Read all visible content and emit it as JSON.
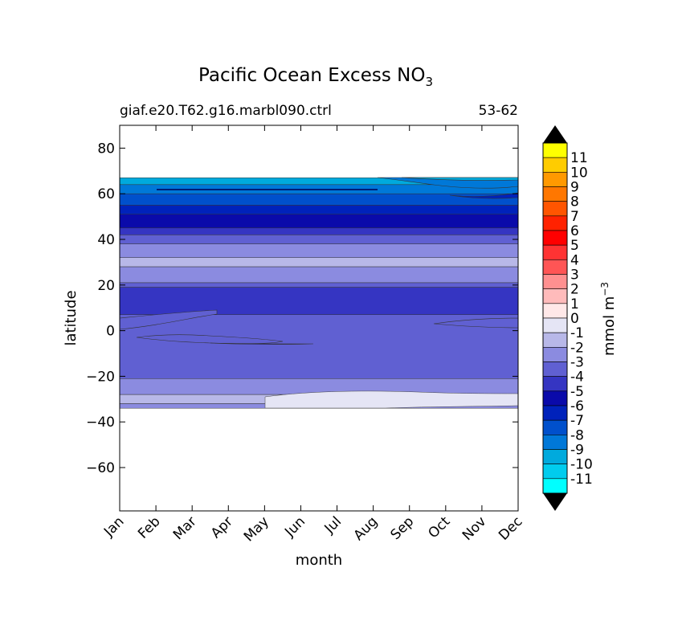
{
  "chart_data": {
    "type": "contour",
    "title": "Pacific Ocean Excess NO",
    "title_subscript": "3",
    "subtitle_left": "giaf.e20.T62.g16.marbl090.ctrl",
    "subtitle_right": "53-62",
    "xlabel": "month",
    "ylabel": "latitude",
    "x_categories": [
      "Jan",
      "Feb",
      "Mar",
      "Apr",
      "May",
      "Jun",
      "Jul",
      "Aug",
      "Sep",
      "Oct",
      "Nov",
      "Dec"
    ],
    "y_ticks": [
      80,
      60,
      40,
      20,
      0,
      -20,
      -40,
      -60
    ],
    "y_tick_labels": [
      "80",
      "60",
      "40",
      "20",
      "0",
      "−20",
      "−40",
      "−60"
    ],
    "ylim": [
      -79,
      90
    ],
    "data_extent_lat": [
      -34,
      67
    ],
    "colorbar": {
      "label": "mmol m",
      "label_superscript": "−3",
      "extend": "both",
      "levels": [
        11,
        10,
        9,
        8,
        7,
        6,
        5,
        4,
        3,
        2,
        1,
        0,
        -1,
        -2,
        -3,
        -4,
        -5,
        -6,
        -7,
        -8,
        -9,
        -10,
        -11
      ],
      "level_labels": [
        "11",
        "10",
        "9",
        "8",
        "7",
        "6",
        "5",
        "4",
        "3",
        "2",
        "1",
        "0",
        "-1",
        "-2",
        "-3",
        "-4",
        "-5",
        "-6",
        "-7",
        "-8",
        "-9",
        "-10",
        "-11"
      ],
      "colors": [
        "#ffff00",
        "#ffcc00",
        "#ff9900",
        "#ff7700",
        "#ff5500",
        "#ff2200",
        "#ff0000",
        "#ff3333",
        "#ff5555",
        "#ff9090",
        "#ffbbbb",
        "#ffe8e8",
        "#e5e5f5",
        "#b8b8e8",
        "#8b8be0",
        "#6060d2",
        "#3535c2",
        "#0a0aaa",
        "#0022bb",
        "#0050cc",
        "#0078d8",
        "#00aadd",
        "#00ccee",
        "#00ffff"
      ],
      "over_color": "#000000",
      "under_color": "#000000"
    },
    "bands": [
      {
        "lat_bottom": 64,
        "lat_top": 67,
        "value": -9
      },
      {
        "lat_bottom": 60,
        "lat_top": 64,
        "value": -8
      },
      {
        "lat_bottom": 55,
        "lat_top": 60,
        "value": -7
      },
      {
        "lat_bottom": 51,
        "lat_top": 55,
        "value": -6
      },
      {
        "lat_bottom": 45,
        "lat_top": 51,
        "value": -5
      },
      {
        "lat_bottom": 42,
        "lat_top": 45,
        "value": -4
      },
      {
        "lat_bottom": 38,
        "lat_top": 42,
        "value": -3
      },
      {
        "lat_bottom": 32,
        "lat_top": 38,
        "value": -2
      },
      {
        "lat_bottom": 28,
        "lat_top": 32,
        "value": -1
      },
      {
        "lat_bottom": 21,
        "lat_top": 28,
        "value": -2
      },
      {
        "lat_bottom": 19,
        "lat_top": 21,
        "value": -3
      },
      {
        "lat_bottom": 7,
        "lat_top": 19,
        "value": -4
      },
      {
        "lat_bottom": -21,
        "lat_top": 7,
        "value": -3
      },
      {
        "lat_bottom": -28,
        "lat_top": -21,
        "value": -2
      },
      {
        "lat_bottom": -32,
        "lat_top": -28,
        "value": -1
      },
      {
        "lat_bottom": -34,
        "lat_top": -32,
        "value": -2
      }
    ]
  }
}
